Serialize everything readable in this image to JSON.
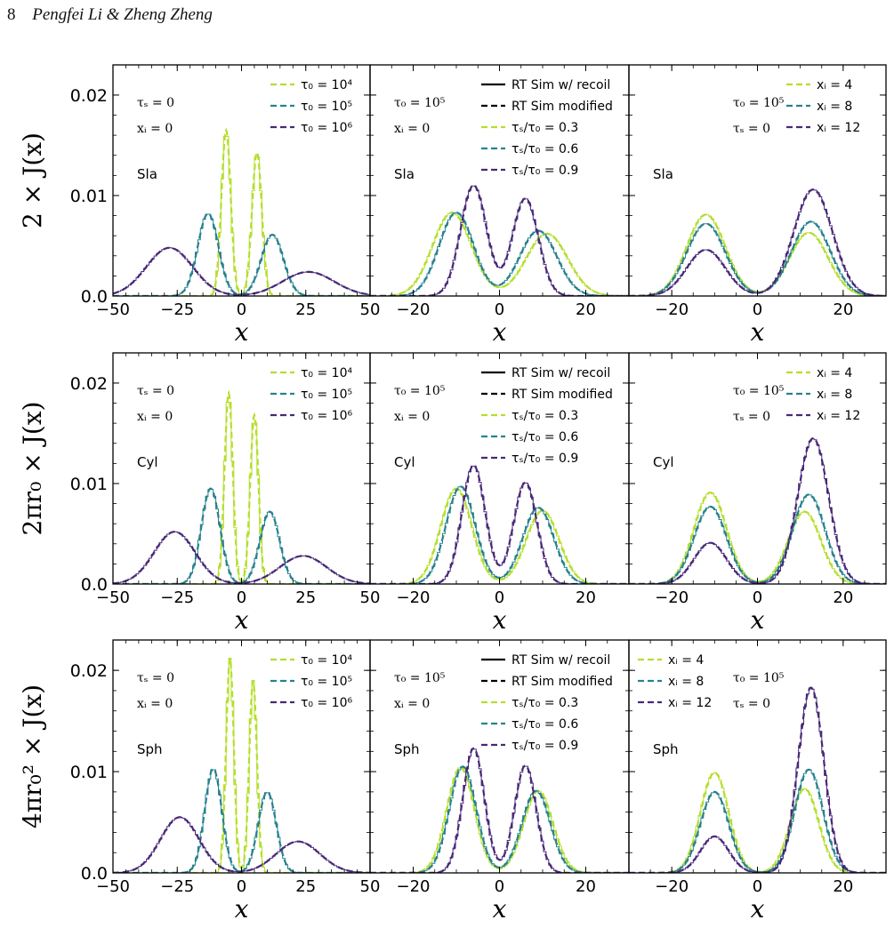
{
  "header": {
    "page_number": "8",
    "authors": "Pengfei Li & Zheng Zheng"
  },
  "colors": {
    "yellow": "#b5de2b",
    "teal": "#26828e",
    "purple": "#482878",
    "black": "#000000"
  },
  "legend_labels": {
    "tau0_1e4": "τ₀ = 10⁴",
    "tau0_1e5": "τ₀ = 10⁵",
    "tau0_1e6": "τ₀ = 10⁶",
    "rt_recoil": "RT Sim w/ recoil",
    "rt_modified": "RT Sim modified",
    "ratio_03": "τₛ/τ₀ = 0.3",
    "ratio_06": "τₛ/τ₀ = 0.6",
    "ratio_09": "τₛ/τ₀ = 0.9",
    "xi_4": "xᵢ = 4",
    "xi_8": "xᵢ = 8",
    "xi_12": "xᵢ = 12"
  },
  "annotations": {
    "taus0": "τₛ = 0",
    "xi0": "xᵢ = 0",
    "tau0_1e5": "τ₀ = 10⁵",
    "geom": [
      "Sla",
      "Cyl",
      "Sph"
    ]
  },
  "chart_data": {
    "type": "line",
    "grid": false,
    "layout": "3 rows (Sla, Cyl, Sph) × 3 columns",
    "x_label": "x",
    "row_ylabels": [
      "2 × J(x)",
      "2πr₀ × J(x)",
      "4πr₀² × J(x)"
    ],
    "ylim": [
      0,
      0.023
    ],
    "yticks": [
      0.0,
      0.01,
      0.02
    ],
    "ytick_labels": [
      "0.0",
      "0.01",
      "0.02"
    ],
    "columns": [
      {
        "xlim": [
          -50,
          50
        ],
        "xticks": [
          -50,
          -25,
          0,
          25,
          50
        ],
        "xtick_labels": [
          "−50",
          "−25",
          "0",
          "25",
          "50"
        ]
      },
      {
        "xlim": [
          -30,
          30
        ],
        "xticks": [
          -20,
          0,
          20
        ],
        "xtick_labels": [
          "−20",
          "0",
          "20"
        ]
      },
      {
        "xlim": [
          -30,
          30
        ],
        "xticks": [
          -20,
          0,
          20
        ],
        "xtick_labels": [
          "−20",
          "0",
          "20"
        ]
      }
    ],
    "panels": [
      {
        "row": 0,
        "col": 0,
        "annotations": [
          "τₛ = 0",
          "xᵢ = 0",
          "Sla"
        ],
        "series": [
          {
            "name": "τ₀ = 10⁴",
            "color": "#b5de2b",
            "peaks": [
              {
                "x": -6,
                "y": 0.0165,
                "w": 1.8
              },
              {
                "x": 6,
                "y": 0.0143,
                "w": 1.9
              }
            ]
          },
          {
            "name": "τ₀ = 10⁵",
            "color": "#26828e",
            "peaks": [
              {
                "x": -13,
                "y": 0.0082,
                "w": 4.0
              },
              {
                "x": 12,
                "y": 0.0061,
                "w": 4.3
              }
            ]
          },
          {
            "name": "τ₀ = 10⁶",
            "color": "#482878",
            "peaks": [
              {
                "x": -28,
                "y": 0.0048,
                "w": 9.0
              },
              {
                "x": 26,
                "y": 0.0024,
                "w": 10.0
              }
            ]
          }
        ]
      },
      {
        "row": 0,
        "col": 1,
        "annotations": [
          "τ₀ = 10⁵",
          "xᵢ = 0",
          "Sla"
        ],
        "series": [
          {
            "name": "τₛ/τ₀ = 0.3",
            "color": "#b5de2b",
            "peaks": [
              {
                "x": -11,
                "y": 0.0083,
                "w": 4.5
              },
              {
                "x": 11,
                "y": 0.0062,
                "w": 4.8
              }
            ]
          },
          {
            "name": "τₛ/τ₀ = 0.6",
            "color": "#26828e",
            "peaks": [
              {
                "x": -10,
                "y": 0.0083,
                "w": 4.0
              },
              {
                "x": 9,
                "y": 0.0065,
                "w": 4.3
              }
            ]
          },
          {
            "name": "τₛ/τ₀ = 0.9",
            "color": "#482878",
            "peaks": [
              {
                "x": -6,
                "y": 0.011,
                "w": 3.0
              },
              {
                "x": 6,
                "y": 0.0097,
                "w": 3.0
              }
            ]
          }
        ]
      },
      {
        "row": 0,
        "col": 2,
        "annotations": [
          "τ₀ = 10⁵",
          "τₛ = 0",
          "Sla"
        ],
        "series": [
          {
            "name": "xᵢ = 4",
            "color": "#b5de2b",
            "peaks": [
              {
                "x": -12,
                "y": 0.0081,
                "w": 4.5
              },
              {
                "x": 12,
                "y": 0.0063,
                "w": 4.5
              }
            ]
          },
          {
            "name": "xᵢ = 8",
            "color": "#26828e",
            "peaks": [
              {
                "x": -12,
                "y": 0.0072,
                "w": 4.5
              },
              {
                "x": 12.5,
                "y": 0.0074,
                "w": 4.5
              }
            ]
          },
          {
            "name": "xᵢ = 12",
            "color": "#482878",
            "peaks": [
              {
                "x": -12,
                "y": 0.0046,
                "w": 4.5
              },
              {
                "x": 13,
                "y": 0.0106,
                "w": 4.5
              }
            ]
          }
        ]
      },
      {
        "row": 1,
        "col": 0,
        "annotations": [
          "τₛ = 0",
          "xᵢ = 0",
          "Cyl"
        ],
        "series": [
          {
            "name": "τ₀ = 10⁴",
            "color": "#b5de2b",
            "peaks": [
              {
                "x": -5,
                "y": 0.019,
                "w": 1.6
              },
              {
                "x": 5,
                "y": 0.0168,
                "w": 1.6
              }
            ]
          },
          {
            "name": "τ₀ = 10⁵",
            "color": "#26828e",
            "peaks": [
              {
                "x": -12,
                "y": 0.0095,
                "w": 3.6
              },
              {
                "x": 11,
                "y": 0.0072,
                "w": 3.8
              }
            ]
          },
          {
            "name": "τ₀ = 10⁶",
            "color": "#482878",
            "peaks": [
              {
                "x": -26,
                "y": 0.0052,
                "w": 8.0
              },
              {
                "x": 24,
                "y": 0.0028,
                "w": 9.0
              }
            ]
          }
        ]
      },
      {
        "row": 1,
        "col": 1,
        "annotations": [
          "τ₀ = 10⁵",
          "xᵢ = 0",
          "Cyl"
        ],
        "series": [
          {
            "name": "τₛ/τ₀ = 0.3",
            "color": "#b5de2b",
            "peaks": [
              {
                "x": -10,
                "y": 0.0095,
                "w": 3.6
              },
              {
                "x": 10,
                "y": 0.0073,
                "w": 3.8
              }
            ]
          },
          {
            "name": "τₛ/τ₀ = 0.6",
            "color": "#26828e",
            "peaks": [
              {
                "x": -9,
                "y": 0.0097,
                "w": 3.4
              },
              {
                "x": 9,
                "y": 0.0076,
                "w": 3.6
              }
            ]
          },
          {
            "name": "τₛ/τ₀ = 0.9",
            "color": "#482878",
            "peaks": [
              {
                "x": -6,
                "y": 0.0118,
                "w": 2.7
              },
              {
                "x": 6,
                "y": 0.0101,
                "w": 2.7
              }
            ]
          }
        ]
      },
      {
        "row": 1,
        "col": 2,
        "annotations": [
          "τ₀ = 10⁵",
          "τₛ = 0",
          "Cyl"
        ],
        "series": [
          {
            "name": "xᵢ = 4",
            "color": "#b5de2b",
            "peaks": [
              {
                "x": -11,
                "y": 0.0091,
                "w": 3.8
              },
              {
                "x": 11,
                "y": 0.0072,
                "w": 3.8
              }
            ]
          },
          {
            "name": "xᵢ = 8",
            "color": "#26828e",
            "peaks": [
              {
                "x": -11,
                "y": 0.0077,
                "w": 3.8
              },
              {
                "x": 12,
                "y": 0.0089,
                "w": 3.8
              }
            ]
          },
          {
            "name": "xᵢ = 12",
            "color": "#482878",
            "peaks": [
              {
                "x": -11,
                "y": 0.0041,
                "w": 3.8
              },
              {
                "x": 13,
                "y": 0.0145,
                "w": 3.6
              }
            ]
          }
        ]
      },
      {
        "row": 2,
        "col": 0,
        "annotations": [
          "τₛ = 0",
          "xᵢ = 0",
          "Sph"
        ],
        "series": [
          {
            "name": "τ₀ = 10⁴",
            "color": "#b5de2b",
            "peaks": [
              {
                "x": -4.5,
                "y": 0.0212,
                "w": 1.5
              },
              {
                "x": 4.5,
                "y": 0.019,
                "w": 1.5
              }
            ]
          },
          {
            "name": "τ₀ = 10⁵",
            "color": "#26828e",
            "peaks": [
              {
                "x": -11,
                "y": 0.0103,
                "w": 3.3
              },
              {
                "x": 10,
                "y": 0.008,
                "w": 3.5
              }
            ]
          },
          {
            "name": "τ₀ = 10⁶",
            "color": "#482878",
            "peaks": [
              {
                "x": -24,
                "y": 0.0055,
                "w": 7.5
              },
              {
                "x": 22,
                "y": 0.0031,
                "w": 8.5
              }
            ]
          }
        ]
      },
      {
        "row": 2,
        "col": 1,
        "annotations": [
          "τ₀ = 10⁵",
          "xᵢ = 0",
          "Sph"
        ],
        "series": [
          {
            "name": "τₛ/τ₀ = 0.3",
            "color": "#b5de2b",
            "peaks": [
              {
                "x": -9,
                "y": 0.0104,
                "w": 3.2
              },
              {
                "x": 9,
                "y": 0.0081,
                "w": 3.4
              }
            ]
          },
          {
            "name": "τₛ/τ₀ = 0.6",
            "color": "#26828e",
            "peaks": [
              {
                "x": -8.5,
                "y": 0.0105,
                "w": 3.1
              },
              {
                "x": 8.5,
                "y": 0.0081,
                "w": 3.3
              }
            ]
          },
          {
            "name": "τₛ/τ₀ = 0.9",
            "color": "#482878",
            "peaks": [
              {
                "x": -6,
                "y": 0.0123,
                "w": 2.5
              },
              {
                "x": 6,
                "y": 0.0106,
                "w": 2.5
              }
            ]
          }
        ]
      },
      {
        "row": 2,
        "col": 2,
        "annotations": [
          "τ₀ = 10⁵",
          "τₛ = 0",
          "Sph"
        ],
        "series": [
          {
            "name": "xᵢ = 4",
            "color": "#b5de2b",
            "peaks": [
              {
                "x": -10,
                "y": 0.0099,
                "w": 3.3
              },
              {
                "x": 11,
                "y": 0.0083,
                "w": 3.3
              }
            ]
          },
          {
            "name": "xᵢ = 8",
            "color": "#26828e",
            "peaks": [
              {
                "x": -10,
                "y": 0.008,
                "w": 3.3
              },
              {
                "x": 12,
                "y": 0.0102,
                "w": 3.3
              }
            ]
          },
          {
            "name": "xᵢ = 12",
            "color": "#482878",
            "peaks": [
              {
                "x": -10,
                "y": 0.0036,
                "w": 3.3
              },
              {
                "x": 12.5,
                "y": 0.0183,
                "w": 3.0
              }
            ]
          }
        ]
      }
    ]
  }
}
